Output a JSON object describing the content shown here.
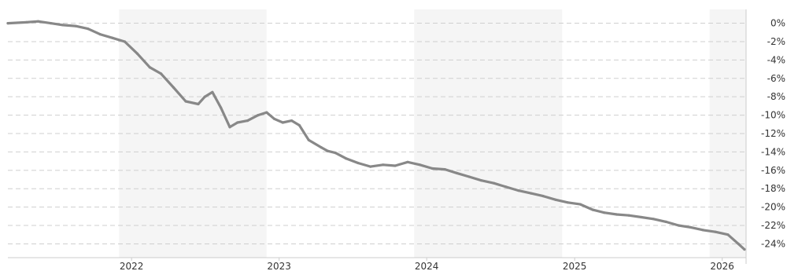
{
  "chart_data": {
    "type": "line",
    "title": "",
    "xlabel": "",
    "ylabel": "",
    "x_range": [
      "2021-03-01",
      "2026-03-01"
    ],
    "ylim": [
      -25.5,
      1.5
    ],
    "grid": true,
    "y_ticks": [
      0,
      -2,
      -4,
      -6,
      -8,
      -10,
      -12,
      -14,
      -16,
      -18,
      -20,
      -22,
      -24
    ],
    "y_tick_labels": [
      "0%",
      "-2%",
      "-4%",
      "-6%",
      "-8%",
      "-10%",
      "-12%",
      "-14%",
      "-16%",
      "-18%",
      "-20%",
      "-22%",
      "-24%"
    ],
    "x_ticks": [
      "2022-01-01",
      "2023-01-01",
      "2024-01-01",
      "2025-01-01",
      "2026-01-01"
    ],
    "x_tick_labels": [
      "2022",
      "2023",
      "2024",
      "2025",
      "2026"
    ],
    "shaded_bands": [
      [
        "2021-12-01",
        "2022-12-01"
      ],
      [
        "2023-12-01",
        "2024-12-01"
      ],
      [
        "2025-12-01",
        "2026-03-01"
      ]
    ],
    "line_color": "#888888",
    "band_color": "#f5f5f5",
    "series": [
      {
        "x": [
          "2021-03-01",
          "2021-04-15",
          "2021-05-15",
          "2021-06-15",
          "2021-07-15",
          "2021-08-15",
          "2021-09-15",
          "2021-10-15",
          "2021-11-15",
          "2021-12-15",
          "2022-01-15",
          "2022-02-15",
          "2022-03-15",
          "2022-04-15",
          "2022-05-15",
          "2022-06-15",
          "2022-07-01",
          "2022-07-20",
          "2022-08-10",
          "2022-09-01",
          "2022-09-20",
          "2022-10-15",
          "2022-11-10",
          "2022-12-01",
          "2022-12-20",
          "2023-01-10",
          "2023-02-01",
          "2023-02-20",
          "2023-03-15",
          "2023-04-15",
          "2023-05-01",
          "2023-05-20",
          "2023-06-15",
          "2023-07-15",
          "2023-08-15",
          "2023-09-15",
          "2023-10-15",
          "2023-11-15",
          "2023-12-15",
          "2024-01-15",
          "2024-02-15",
          "2024-03-15",
          "2024-04-15",
          "2024-05-15",
          "2024-06-15",
          "2024-07-15",
          "2024-08-15",
          "2024-09-15",
          "2024-10-15",
          "2024-11-15",
          "2024-12-15",
          "2025-01-15",
          "2025-02-15",
          "2025-03-15",
          "2025-04-15",
          "2025-05-15",
          "2025-06-15",
          "2025-07-15",
          "2025-08-15",
          "2025-09-15",
          "2025-10-15",
          "2025-11-15",
          "2025-12-15",
          "2026-01-15",
          "2026-02-10",
          "2026-02-25"
        ],
        "y": [
          0.0,
          0.1,
          0.2,
          0.0,
          -0.2,
          -0.3,
          -0.6,
          -1.2,
          -1.6,
          -2.0,
          -3.3,
          -4.8,
          -5.5,
          -7.0,
          -8.5,
          -8.8,
          -8.0,
          -7.5,
          -9.2,
          -11.3,
          -10.8,
          -10.6,
          -10.0,
          -9.7,
          -10.4,
          -10.8,
          -10.6,
          -11.1,
          -12.7,
          -13.5,
          -13.9,
          -14.1,
          -14.7,
          -15.2,
          -15.6,
          -15.4,
          -15.5,
          -15.1,
          -15.4,
          -15.8,
          -15.9,
          -16.3,
          -16.7,
          -17.1,
          -17.4,
          -17.8,
          -18.2,
          -18.5,
          -18.8,
          -19.2,
          -19.5,
          -19.7,
          -20.3,
          -20.6,
          -20.8,
          -20.9,
          -21.1,
          -21.3,
          -21.6,
          -22.0,
          -22.2,
          -22.5,
          -22.7,
          -23.0,
          -24.0,
          -24.6
        ]
      }
    ]
  }
}
